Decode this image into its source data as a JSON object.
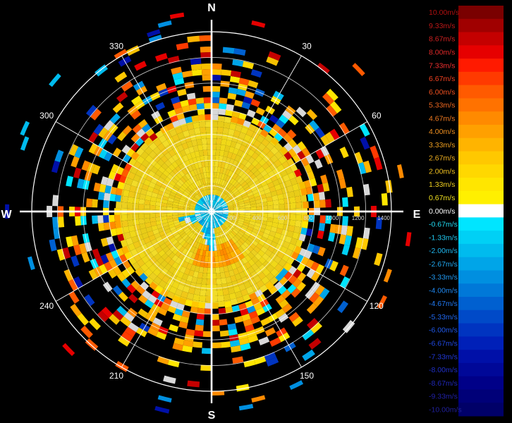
{
  "chart_data": {
    "type": "polar-heatmap",
    "title": "",
    "compass": {
      "north": "N",
      "east": "E",
      "south": "S",
      "west": "W"
    },
    "angle_ticks": [
      {
        "deg": 30,
        "label": "30"
      },
      {
        "deg": 60,
        "label": "60"
      },
      {
        "deg": 120,
        "label": "120"
      },
      {
        "deg": 150,
        "label": "150"
      },
      {
        "deg": 210,
        "label": "210"
      },
      {
        "deg": 240,
        "label": "240"
      },
      {
        "deg": 300,
        "label": "300"
      },
      {
        "deg": 330,
        "label": "330"
      }
    ],
    "radial_ticks": [
      {
        "value": 200,
        "label": "200"
      },
      {
        "value": 400,
        "label": "400"
      },
      {
        "value": 600,
        "label": "600"
      },
      {
        "value": 800,
        "label": "800"
      },
      {
        "value": 1000,
        "label": "1000"
      },
      {
        "value": 1200,
        "label": "1200"
      },
      {
        "value": 1400,
        "label": "1400"
      }
    ],
    "r_max": 1400,
    "grid": true,
    "colorbar": {
      "levels": [
        {
          "label": "10.00m/s",
          "color": "#7a0000",
          "text_color": "#b01010"
        },
        {
          "label": "9.33m/s",
          "color": "#a00000",
          "text_color": "#c01818"
        },
        {
          "label": "8.67m/s",
          "color": "#c40000",
          "text_color": "#d02020"
        },
        {
          "label": "8.00m/s",
          "color": "#e60000",
          "text_color": "#e02828"
        },
        {
          "label": "7.33m/s",
          "color": "#ff1a00",
          "text_color": "#f03030"
        },
        {
          "label": "6.67m/s",
          "color": "#ff3a00",
          "text_color": "#f04020"
        },
        {
          "label": "6.00m/s",
          "color": "#ff5a00",
          "text_color": "#f05020"
        },
        {
          "label": "5.33m/s",
          "color": "#ff7200",
          "text_color": "#f06820"
        },
        {
          "label": "4.67m/s",
          "color": "#ff8a00",
          "text_color": "#f07a20"
        },
        {
          "label": "4.00m/s",
          "color": "#ffa000",
          "text_color": "#f09020"
        },
        {
          "label": "3.33m/s",
          "color": "#ffb400",
          "text_color": "#f0a020"
        },
        {
          "label": "2.67m/s",
          "color": "#ffc800",
          "text_color": "#f0b020"
        },
        {
          "label": "2.00m/s",
          "color": "#ffd800",
          "text_color": "#f0c020"
        },
        {
          "label": "1.33m/s",
          "color": "#ffe600",
          "text_color": "#f0d020"
        },
        {
          "label": "0.67m/s",
          "color": "#fff000",
          "text_color": "#f0e020"
        },
        {
          "label": "0.00m/s",
          "color": "#ffffff",
          "text_color": "#ffffff"
        },
        {
          "label": "-0.67m/s",
          "color": "#00e5ff",
          "text_color": "#20d8f0"
        },
        {
          "label": "-1.33m/s",
          "color": "#00d0f5",
          "text_color": "#20c8f0"
        },
        {
          "label": "-2.00m/s",
          "color": "#00bbee",
          "text_color": "#20b8f0"
        },
        {
          "label": "-2.67m/s",
          "color": "#00a5e8",
          "text_color": "#20a8f0"
        },
        {
          "label": "-3.33m/s",
          "color": "#008fe0",
          "text_color": "#2098f0"
        },
        {
          "label": "-4.00m/s",
          "color": "#0078d8",
          "text_color": "#2088f0"
        },
        {
          "label": "-4.67m/s",
          "color": "#0060d0",
          "text_color": "#2078f0"
        },
        {
          "label": "-5.33m/s",
          "color": "#004ac8",
          "text_color": "#2068f0"
        },
        {
          "label": "-6.00m/s",
          "color": "#0034c0",
          "text_color": "#2058e8"
        },
        {
          "label": "-6.67m/s",
          "color": "#0020b8",
          "text_color": "#2048e0"
        },
        {
          "label": "-7.33m/s",
          "color": "#0010a8",
          "text_color": "#2038d8"
        },
        {
          "label": "-8.00m/s",
          "color": "#000898",
          "text_color": "#2030c8"
        },
        {
          "label": "-8.67m/s",
          "color": "#000088",
          "text_color": "#2028b8"
        },
        {
          "label": "-9.33m/s",
          "color": "#000078",
          "text_color": "#2020a8"
        },
        {
          "label": "-10.00m/s",
          "color": "#000068",
          "text_color": "#202098"
        }
      ]
    }
  }
}
